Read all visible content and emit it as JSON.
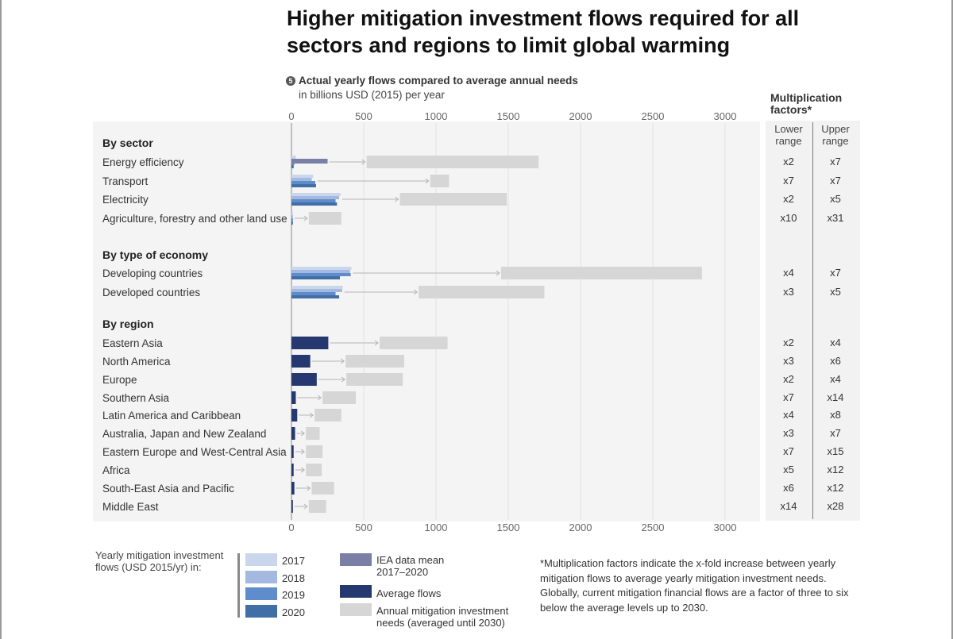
{
  "title": "Higher mitigation investment flows required for all sectors and regions to limit global warming",
  "subtitle": {
    "number": "5",
    "line1": "Actual yearly flows compared to average annual needs",
    "line2": "in billions USD (2015) per year"
  },
  "multiplication": {
    "title": "Multiplication factors*",
    "lower_header": "Lower range",
    "upper_header": "Upper range"
  },
  "colors": {
    "y2017": "#c9d6ec",
    "y2018": "#a3b9e0",
    "y2019": "#5f8cca",
    "y2020": "#3f6fa6",
    "iea": "#7a7fa6",
    "average": "#263870",
    "needs": "#d6d6d6"
  },
  "legend": {
    "title": "Yearly mitigation investment flows (USD 2015/yr) in:",
    "years": [
      "2017",
      "2018",
      "2019",
      "2020"
    ],
    "iea_label": "IEA data mean 2017–2020",
    "average_label": "Average flows",
    "needs_label": "Annual mitigation investment needs (averaged until 2030)"
  },
  "footnote": "*Multiplication factors indicate the x-fold increase between yearly mitigation flows to average yearly mitigation investment needs. Globally, current mitigation financial flows are a factor of three to six below the average levels up to 2030.",
  "chart_data": {
    "type": "bar",
    "orientation": "horizontal",
    "xlim": [
      0,
      3000
    ],
    "xticks": [
      0,
      500,
      1000,
      1500,
      2000,
      2500,
      3000
    ],
    "groups": [
      {
        "heading": "By sector",
        "rows": [
          {
            "label": "Energy efficiency",
            "flows": [
              30,
              25,
              20,
              15
            ],
            "iea": 250,
            "needs": [
              520,
              1710
            ],
            "lower": "x2",
            "upper": "x7"
          },
          {
            "label": "Transport",
            "flows": [
              150,
              140,
              165,
              170
            ],
            "needs": [
              960,
              1090
            ],
            "lower": "x7",
            "upper": "x7"
          },
          {
            "label": "Electricity",
            "flows": [
              340,
              330,
              305,
              315
            ],
            "needs": [
              750,
              1490
            ],
            "lower": "x2",
            "upper": "x5"
          },
          {
            "label": "Agriculture, forestry and other land use",
            "flows": [
              10,
              10,
              10,
              10
            ],
            "needs": [
              120,
              345
            ],
            "lower": "x10",
            "upper": "x31"
          }
        ]
      },
      {
        "heading": "By type of economy",
        "rows": [
          {
            "label": "Developing countries",
            "flows": [
              415,
              405,
              410,
              335
            ],
            "needs": [
              1450,
              2840
            ],
            "lower": "x4",
            "upper": "x7"
          },
          {
            "label": "Developed countries",
            "flows": [
              355,
              350,
              305,
              330
            ],
            "needs": [
              880,
              1750
            ],
            "lower": "x3",
            "upper": "x5"
          }
        ]
      },
      {
        "heading": "By region",
        "rows": [
          {
            "label": "Eastern Asia",
            "avg": 255,
            "needs": [
              610,
              1080
            ],
            "lower": "x2",
            "upper": "x4"
          },
          {
            "label": "North America",
            "avg": 130,
            "needs": [
              375,
              780
            ],
            "lower": "x3",
            "upper": "x6"
          },
          {
            "label": "Europe",
            "avg": 175,
            "needs": [
              380,
              770
            ],
            "lower": "x2",
            "upper": "x4"
          },
          {
            "label": "Southern Asia",
            "avg": 30,
            "needs": [
              215,
              445
            ],
            "lower": "x7",
            "upper": "x14"
          },
          {
            "label": "Latin America and Caribbean",
            "avg": 40,
            "needs": [
              160,
              345
            ],
            "lower": "x4",
            "upper": "x8"
          },
          {
            "label": "Australia, Japan and New Zealand",
            "avg": 25,
            "needs": [
              100,
              195
            ],
            "lower": "x3",
            "upper": "x7"
          },
          {
            "label": "Eastern Europe and West-Central Asia",
            "avg": 15,
            "needs": [
              100,
              215
            ],
            "lower": "x7",
            "upper": "x15"
          },
          {
            "label": "Africa",
            "avg": 15,
            "needs": [
              100,
              210
            ],
            "lower": "x5",
            "upper": "x12"
          },
          {
            "label": "South-East Asia and Pacific",
            "avg": 20,
            "needs": [
              140,
              295
            ],
            "lower": "x6",
            "upper": "x12"
          },
          {
            "label": "Middle East",
            "avg": 10,
            "needs": [
              120,
              240
            ],
            "lower": "x14",
            "upper": "x28"
          }
        ]
      }
    ]
  }
}
